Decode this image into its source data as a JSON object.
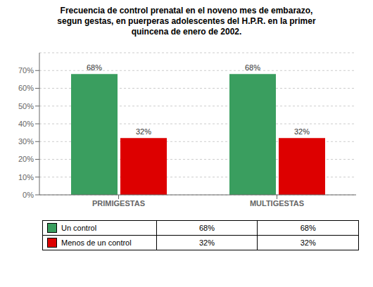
{
  "chart_data": {
    "type": "bar",
    "title": "Frecuencia de control prenatal en el noveno mes de embarazo,\nsegun gestas, en puerperas adolescentes del H.P.R. en la primer\nquincena de enero de 2002.",
    "categories": [
      "PRIMIGESTAS",
      "MULTIGESTAS"
    ],
    "series": [
      {
        "name": "Un control",
        "color": "#3A9E5F",
        "values": [
          68,
          68
        ],
        "value_labels": [
          "68%",
          "68%"
        ]
      },
      {
        "name": "Menos de un control",
        "color": "#DD0000",
        "values": [
          32,
          32
        ],
        "value_labels": [
          "32%",
          "32%"
        ]
      }
    ],
    "ylim": [
      0,
      80
    ],
    "yticks": [
      {
        "value": 0,
        "label": "0%"
      },
      {
        "value": 10,
        "label": "10%"
      },
      {
        "value": 20,
        "label": "20%"
      },
      {
        "value": 30,
        "label": "30%"
      },
      {
        "value": 40,
        "label": "40%"
      },
      {
        "value": 50,
        "label": "50%"
      },
      {
        "value": 60,
        "label": "60%"
      },
      {
        "value": 70,
        "label": "70%"
      }
    ],
    "grid": true,
    "data_labels": true,
    "legend": "bottom"
  }
}
